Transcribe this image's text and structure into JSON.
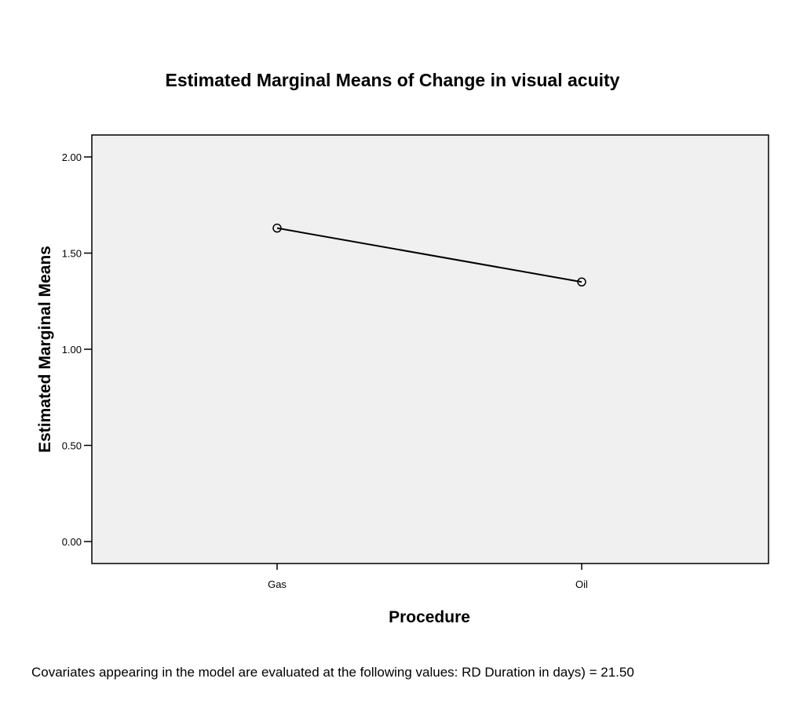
{
  "chart_data": {
    "type": "line",
    "title": "Estimated Marginal Means of Change in visual acuity",
    "xlabel": "Procedure",
    "ylabel": "Estimated Marginal Means",
    "categories": [
      "Gas",
      "Oil"
    ],
    "series": [
      {
        "values": [
          1.63,
          1.35
        ]
      }
    ],
    "ylim": [
      0.0,
      2.1
    ],
    "yticks": [
      "0.00",
      "0.50",
      "1.00",
      "1.50",
      "2.00"
    ],
    "ytick_values": [
      0.0,
      0.5,
      1.0,
      1.5,
      2.0
    ],
    "grid": false,
    "marker": "open-circle",
    "footnote": "Covariates appearing in the model are evaluated at the following values: RD Duration in days) = 21.50"
  },
  "colors": {
    "plot_background": "#f0f0f0",
    "line": "#000000",
    "axis": "#000000"
  }
}
